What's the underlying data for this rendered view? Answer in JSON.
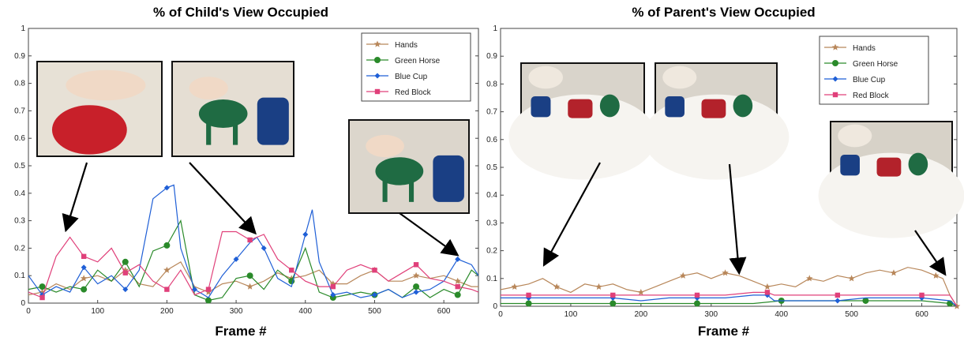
{
  "chart_data": [
    {
      "type": "line",
      "title": "% of Child's View Occupied",
      "xlabel": "Frame #",
      "ylabel": "",
      "xlim": [
        0,
        650
      ],
      "ylim": [
        0,
        1
      ],
      "xticks": [
        0,
        100,
        200,
        300,
        400,
        500,
        600
      ],
      "yticks": [
        0,
        0.1,
        0.2,
        0.3,
        0.4,
        0.5,
        0.6,
        0.7,
        0.8,
        0.9,
        1
      ],
      "legend_position": "top-right",
      "series": [
        {
          "name": "Hands",
          "color": "#b8875a",
          "marker": "star",
          "x": [
            0,
            20,
            40,
            60,
            80,
            100,
            120,
            140,
            160,
            180,
            200,
            220,
            240,
            260,
            280,
            300,
            320,
            340,
            360,
            380,
            400,
            420,
            440,
            460,
            480,
            500,
            520,
            540,
            560,
            580,
            600,
            620,
            640,
            650
          ],
          "y": [
            0.03,
            0.04,
            0.07,
            0.05,
            0.09,
            0.1,
            0.08,
            0.12,
            0.07,
            0.06,
            0.12,
            0.15,
            0.06,
            0.04,
            0.07,
            0.08,
            0.06,
            0.08,
            0.11,
            0.09,
            0.1,
            0.12,
            0.07,
            0.07,
            0.1,
            0.12,
            0.08,
            0.08,
            0.1,
            0.09,
            0.1,
            0.08,
            0.06,
            0.06
          ]
        },
        {
          "name": "Green Horse",
          "color": "#2a8a2a",
          "marker": "circle",
          "x": [
            0,
            20,
            40,
            60,
            80,
            100,
            120,
            140,
            160,
            180,
            200,
            220,
            240,
            260,
            280,
            300,
            320,
            340,
            360,
            380,
            400,
            420,
            440,
            460,
            480,
            500,
            520,
            540,
            560,
            580,
            600,
            620,
            640,
            650
          ],
          "y": [
            0.05,
            0.06,
            0.04,
            0.06,
            0.05,
            0.12,
            0.08,
            0.15,
            0.06,
            0.19,
            0.21,
            0.3,
            0.03,
            0.01,
            0.02,
            0.09,
            0.1,
            0.05,
            0.12,
            0.08,
            0.2,
            0.04,
            0.02,
            0.03,
            0.04,
            0.03,
            0.05,
            0.02,
            0.06,
            0.02,
            0.05,
            0.03,
            0.12,
            0.1
          ]
        },
        {
          "name": "Blue Cup",
          "color": "#1f5fd6",
          "marker": "diamond",
          "x": [
            0,
            20,
            40,
            60,
            80,
            100,
            120,
            140,
            160,
            180,
            200,
            210,
            220,
            240,
            260,
            280,
            300,
            320,
            330,
            340,
            360,
            380,
            400,
            410,
            420,
            440,
            460,
            480,
            500,
            520,
            540,
            560,
            580,
            600,
            620,
            640,
            650
          ],
          "y": [
            0.1,
            0.03,
            0.06,
            0.04,
            0.13,
            0.07,
            0.1,
            0.05,
            0.12,
            0.38,
            0.42,
            0.43,
            0.2,
            0.05,
            0.02,
            0.1,
            0.16,
            0.22,
            0.24,
            0.2,
            0.09,
            0.06,
            0.25,
            0.34,
            0.15,
            0.03,
            0.04,
            0.02,
            0.03,
            0.05,
            0.02,
            0.04,
            0.05,
            0.08,
            0.16,
            0.14,
            0.1
          ]
        },
        {
          "name": "Red Block",
          "color": "#e0407a",
          "marker": "square",
          "x": [
            0,
            20,
            40,
            60,
            80,
            100,
            120,
            140,
            160,
            180,
            200,
            220,
            240,
            260,
            280,
            300,
            320,
            340,
            360,
            380,
            400,
            420,
            440,
            460,
            480,
            500,
            520,
            540,
            560,
            580,
            600,
            620,
            640,
            650
          ],
          "y": [
            0.04,
            0.02,
            0.17,
            0.24,
            0.17,
            0.15,
            0.2,
            0.11,
            0.14,
            0.08,
            0.05,
            0.12,
            0.03,
            0.05,
            0.26,
            0.26,
            0.23,
            0.25,
            0.16,
            0.12,
            0.08,
            0.06,
            0.06,
            0.12,
            0.14,
            0.12,
            0.08,
            0.11,
            0.14,
            0.09,
            0.08,
            0.06,
            0.05,
            0.04
          ]
        }
      ],
      "annotations": [
        {
          "label": "photo: red block in hand",
          "arrow_to_frame": 55
        },
        {
          "label": "photo: green horse held",
          "arrow_to_frame": 330
        },
        {
          "label": "photo: horse and blue cup",
          "arrow_to_frame": 625
        }
      ]
    },
    {
      "type": "line",
      "title": "% of Parent's View Occupied",
      "xlabel": "Frame #",
      "ylabel": "",
      "xlim": [
        0,
        650
      ],
      "ylim": [
        0,
        1
      ],
      "xticks": [
        0,
        100,
        200,
        300,
        400,
        500,
        600
      ],
      "yticks": [
        0,
        0.1,
        0.2,
        0.3,
        0.4,
        0.5,
        0.6,
        0.7,
        0.8,
        0.9,
        1
      ],
      "legend_position": "top-right",
      "series": [
        {
          "name": "Hands",
          "color": "#b8875a",
          "marker": "star",
          "x": [
            0,
            20,
            40,
            60,
            80,
            100,
            120,
            140,
            160,
            180,
            200,
            220,
            240,
            260,
            280,
            300,
            320,
            340,
            360,
            380,
            400,
            420,
            440,
            460,
            480,
            500,
            520,
            540,
            560,
            580,
            600,
            620,
            630,
            640,
            650
          ],
          "y": [
            0.06,
            0.07,
            0.08,
            0.1,
            0.07,
            0.05,
            0.08,
            0.07,
            0.08,
            0.06,
            0.05,
            0.07,
            0.09,
            0.11,
            0.12,
            0.1,
            0.12,
            0.11,
            0.09,
            0.07,
            0.08,
            0.07,
            0.1,
            0.09,
            0.11,
            0.1,
            0.12,
            0.13,
            0.12,
            0.14,
            0.13,
            0.11,
            0.1,
            0.04,
            0.0
          ]
        },
        {
          "name": "Green Horse",
          "color": "#2a8a2a",
          "marker": "circle",
          "x": [
            0,
            40,
            80,
            120,
            160,
            200,
            240,
            280,
            320,
            360,
            400,
            440,
            480,
            520,
            560,
            600,
            640,
            650
          ],
          "y": [
            0.01,
            0.01,
            0.01,
            0.01,
            0.01,
            0.01,
            0.01,
            0.01,
            0.01,
            0.01,
            0.02,
            0.02,
            0.02,
            0.02,
            0.02,
            0.02,
            0.01,
            0.0
          ]
        },
        {
          "name": "Blue Cup",
          "color": "#1f5fd6",
          "marker": "diamond",
          "x": [
            0,
            40,
            80,
            120,
            160,
            200,
            240,
            280,
            320,
            360,
            380,
            390,
            440,
            480,
            520,
            560,
            600,
            640,
            650
          ],
          "y": [
            0.03,
            0.03,
            0.03,
            0.03,
            0.03,
            0.02,
            0.03,
            0.03,
            0.03,
            0.04,
            0.04,
            0.02,
            0.02,
            0.02,
            0.03,
            0.03,
            0.03,
            0.02,
            0.0
          ]
        },
        {
          "name": "Red Block",
          "color": "#e0407a",
          "marker": "square",
          "x": [
            0,
            40,
            80,
            120,
            160,
            200,
            240,
            280,
            320,
            360,
            380,
            390,
            440,
            480,
            520,
            560,
            600,
            640,
            650
          ],
          "y": [
            0.04,
            0.04,
            0.04,
            0.04,
            0.04,
            0.04,
            0.04,
            0.04,
            0.04,
            0.05,
            0.05,
            0.04,
            0.04,
            0.04,
            0.04,
            0.04,
            0.04,
            0.04,
            0.0
          ]
        }
      ],
      "annotations": [
        {
          "label": "photo: table scene 1",
          "arrow_to_frame": 40
        },
        {
          "label": "photo: table scene 2",
          "arrow_to_frame": 320
        },
        {
          "label": "photo: table scene 3",
          "arrow_to_frame": 640
        }
      ]
    }
  ]
}
